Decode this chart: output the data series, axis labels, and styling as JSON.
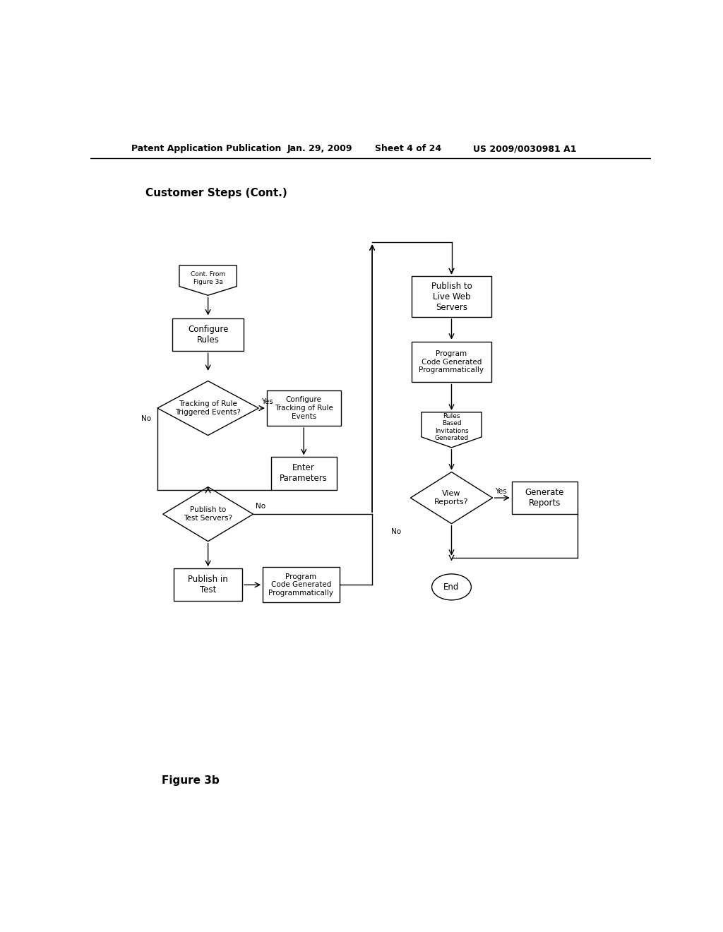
{
  "bg_color": "#ffffff",
  "header_text": "Patent Application Publication",
  "header_date": "Jan. 29, 2009",
  "header_sheet": "Sheet 4 of 24",
  "header_patent": "US 2009/0030981 A1",
  "title": "Customer Steps (Cont.)",
  "figure_label": "Figure 3b"
}
